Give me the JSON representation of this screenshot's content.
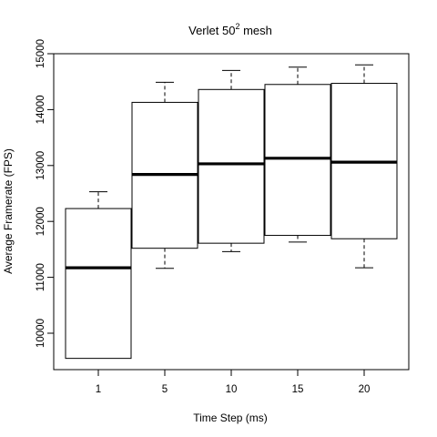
{
  "chart_data": {
    "type": "boxplot",
    "title": {
      "prefix": "Verlet  50",
      "superscript": "2",
      "suffix": "  mesh"
    },
    "xlabel": "Time Step (ms)",
    "ylabel": "Average Framerate (FPS)",
    "ylim": [
      9300,
      15000
    ],
    "yticks": [
      "10000",
      "11000",
      "12000",
      "13000",
      "14000",
      "15000"
    ],
    "grid": false,
    "categories": [
      "1",
      "5",
      "10",
      "15",
      "20"
    ],
    "boxes": [
      {
        "category": "1",
        "min": 9550,
        "q1": 9550,
        "median": 11170,
        "q3": 12230,
        "max": 12530
      },
      {
        "category": "5",
        "min": 11160,
        "q1": 11520,
        "median": 12840,
        "q3": 14130,
        "max": 14490
      },
      {
        "category": "10",
        "min": 11460,
        "q1": 11610,
        "median": 13030,
        "q3": 14360,
        "max": 14700
      },
      {
        "category": "15",
        "min": 11630,
        "q1": 11750,
        "median": 13130,
        "q3": 14450,
        "max": 14760
      },
      {
        "category": "20",
        "min": 11170,
        "q1": 11690,
        "median": 13060,
        "q3": 14470,
        "max": 14800
      }
    ]
  }
}
